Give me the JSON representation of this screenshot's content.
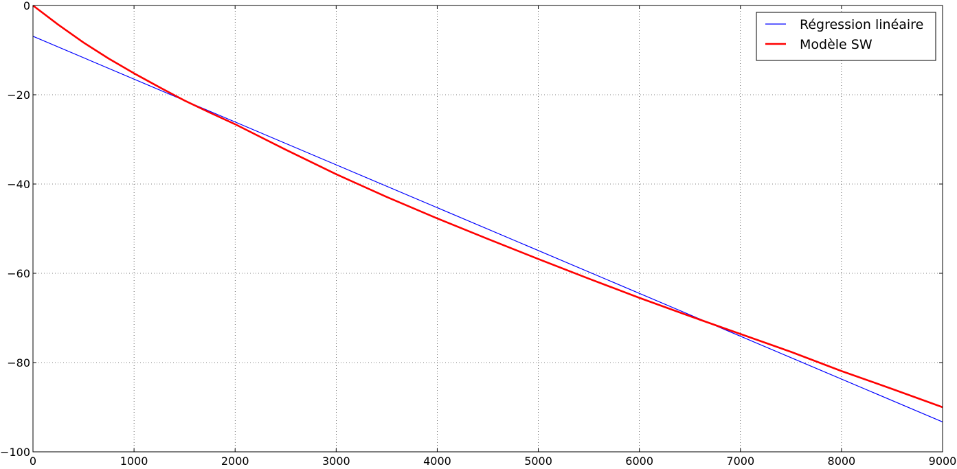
{
  "chart_data": {
    "type": "line",
    "title": "",
    "xlabel": "",
    "ylabel": "",
    "xlim": [
      0,
      9000
    ],
    "ylim": [
      -100,
      0
    ],
    "grid": true,
    "legend_position": "top-right",
    "x_ticks": [
      0,
      1000,
      2000,
      3000,
      4000,
      5000,
      6000,
      7000,
      8000,
      9000
    ],
    "y_ticks": [
      0,
      -20,
      -40,
      -60,
      -80,
      -100
    ],
    "x_tick_labels": [
      "0",
      "1000",
      "2000",
      "3000",
      "4000",
      "5000",
      "6000",
      "7000",
      "8000",
      "9000"
    ],
    "y_tick_labels": [
      "0",
      "−20",
      "−40",
      "−60",
      "−80",
      "−100"
    ],
    "series": [
      {
        "name": "Régression linéaire",
        "color": "#0000ff",
        "style": "thin",
        "x": [
          0,
          9000
        ],
        "y": [
          -6.9,
          -93.3
        ]
      },
      {
        "name": "Modèle SW",
        "color": "#ff0000",
        "style": "thick",
        "x": [
          0,
          250,
          500,
          750,
          1000,
          1250,
          1500,
          1750,
          2000,
          2500,
          3000,
          3500,
          4000,
          4500,
          5000,
          5500,
          6000,
          6500,
          7000,
          7500,
          8000,
          8500,
          9000
        ],
        "y": [
          0,
          -4.3,
          -8.3,
          -11.9,
          -15.2,
          -18.3,
          -21.3,
          -24.0,
          -26.6,
          -32.3,
          -37.8,
          -42.9,
          -47.7,
          -52.3,
          -56.8,
          -61.2,
          -65.5,
          -69.6,
          -73.6,
          -77.6,
          -81.9,
          -85.9,
          -90.0
        ]
      }
    ]
  }
}
